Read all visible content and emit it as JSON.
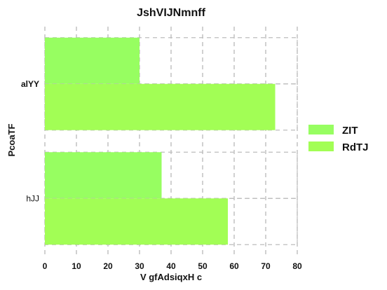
{
  "chart_data": {
    "type": "bar",
    "orientation": "horizontal",
    "title": "JshVIJNmnff",
    "xlabel": "V gfAdsiqxH c",
    "ylabel": "PcoaTF",
    "categories": [
      "alYY",
      "hJJ"
    ],
    "series": [
      {
        "name": "ZIT",
        "values": [
          30,
          37
        ],
        "color": "#97fe61"
      },
      {
        "name": "RdTJ",
        "values": [
          73,
          58
        ],
        "color": "#a2fe55"
      }
    ],
    "xlim": [
      0,
      80
    ],
    "xticks": [
      0,
      10,
      20,
      30,
      40,
      50,
      60,
      70,
      80
    ],
    "grid": "vertical-dashed",
    "legend_position": "right"
  }
}
